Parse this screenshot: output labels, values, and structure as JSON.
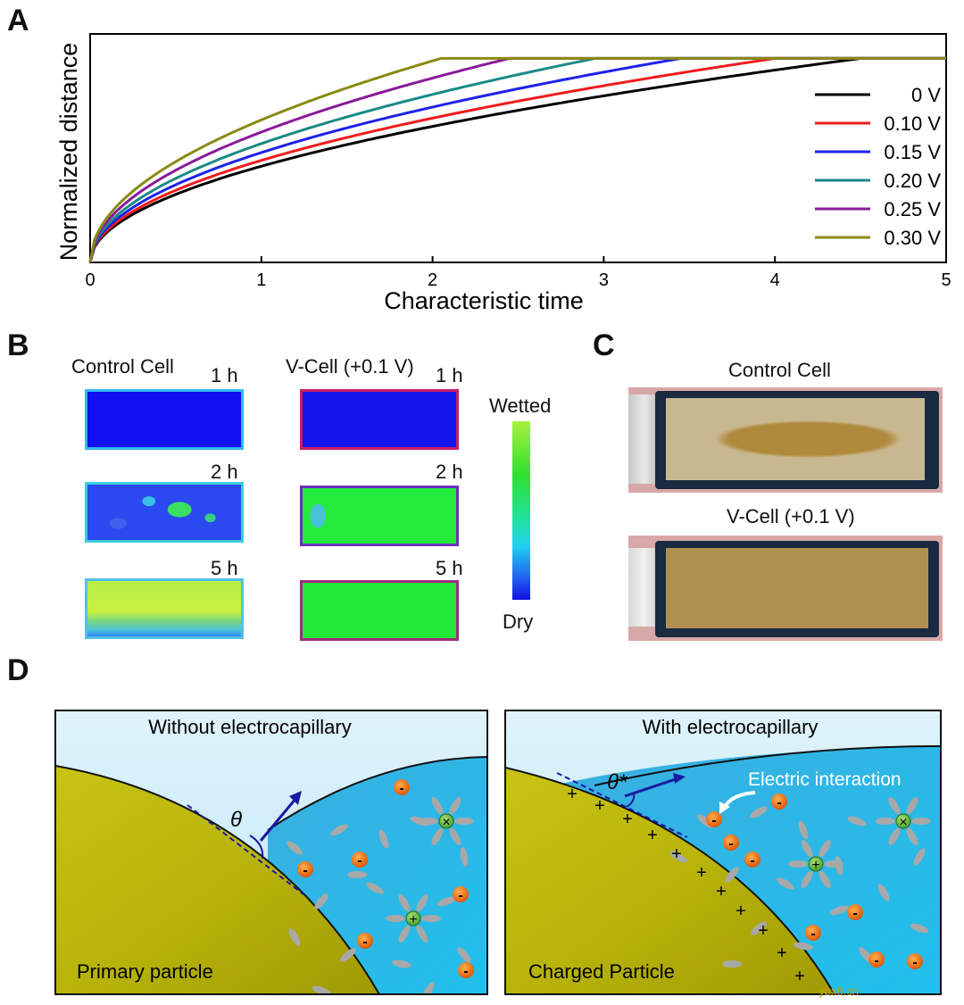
{
  "panels": {
    "a": "A",
    "b": "B",
    "c": "C",
    "d": "D"
  },
  "chart_data": {
    "type": "line",
    "title": "",
    "xlabel": "Characteristic time",
    "ylabel": "Normalized distance",
    "xlim": [
      0,
      5
    ],
    "ylim": [
      0,
      1.12
    ],
    "xticks": [
      "0",
      "1",
      "2",
      "3",
      "4",
      "5"
    ],
    "legend_position": "right",
    "plateau": 1.0,
    "series": [
      {
        "name": "0 V",
        "color": "#000000",
        "t_full": 4.5
      },
      {
        "name": "0.10 V",
        "color": "#ee1c1c",
        "t_full": 4.0
      },
      {
        "name": "0.15 V",
        "color": "#1e22e8",
        "t_full": 3.45
      },
      {
        "name": "0.20 V",
        "color": "#1a8a86",
        "t_full": 2.95
      },
      {
        "name": "0.25 V",
        "color": "#8a1a9a",
        "t_full": 2.45
      },
      {
        "name": "0.30 V",
        "color": "#8a8a14",
        "t_full": 2.05
      }
    ]
  },
  "panel_b": {
    "control_title": "Control Cell",
    "vcell_title": "V-Cell (+0.1 V)",
    "times": [
      "1 h",
      "2 h",
      "5 h"
    ],
    "colorbar_top": "Wetted",
    "colorbar_bottom": "Dry"
  },
  "panel_c": {
    "control_title": "Control Cell",
    "vcell_title": "V-Cell (+0.1 V)"
  },
  "panel_d": {
    "left_title": "Without electrocapillary",
    "right_title": "With electrocapillary",
    "left_particle": "Primary particle",
    "right_particle": "Charged Particle",
    "theta": "θ",
    "theta_star": "θ*",
    "electric_label": "Electric interaction",
    "minus": "-",
    "plus": "+"
  },
  "watermark": "ybx8.cn"
}
